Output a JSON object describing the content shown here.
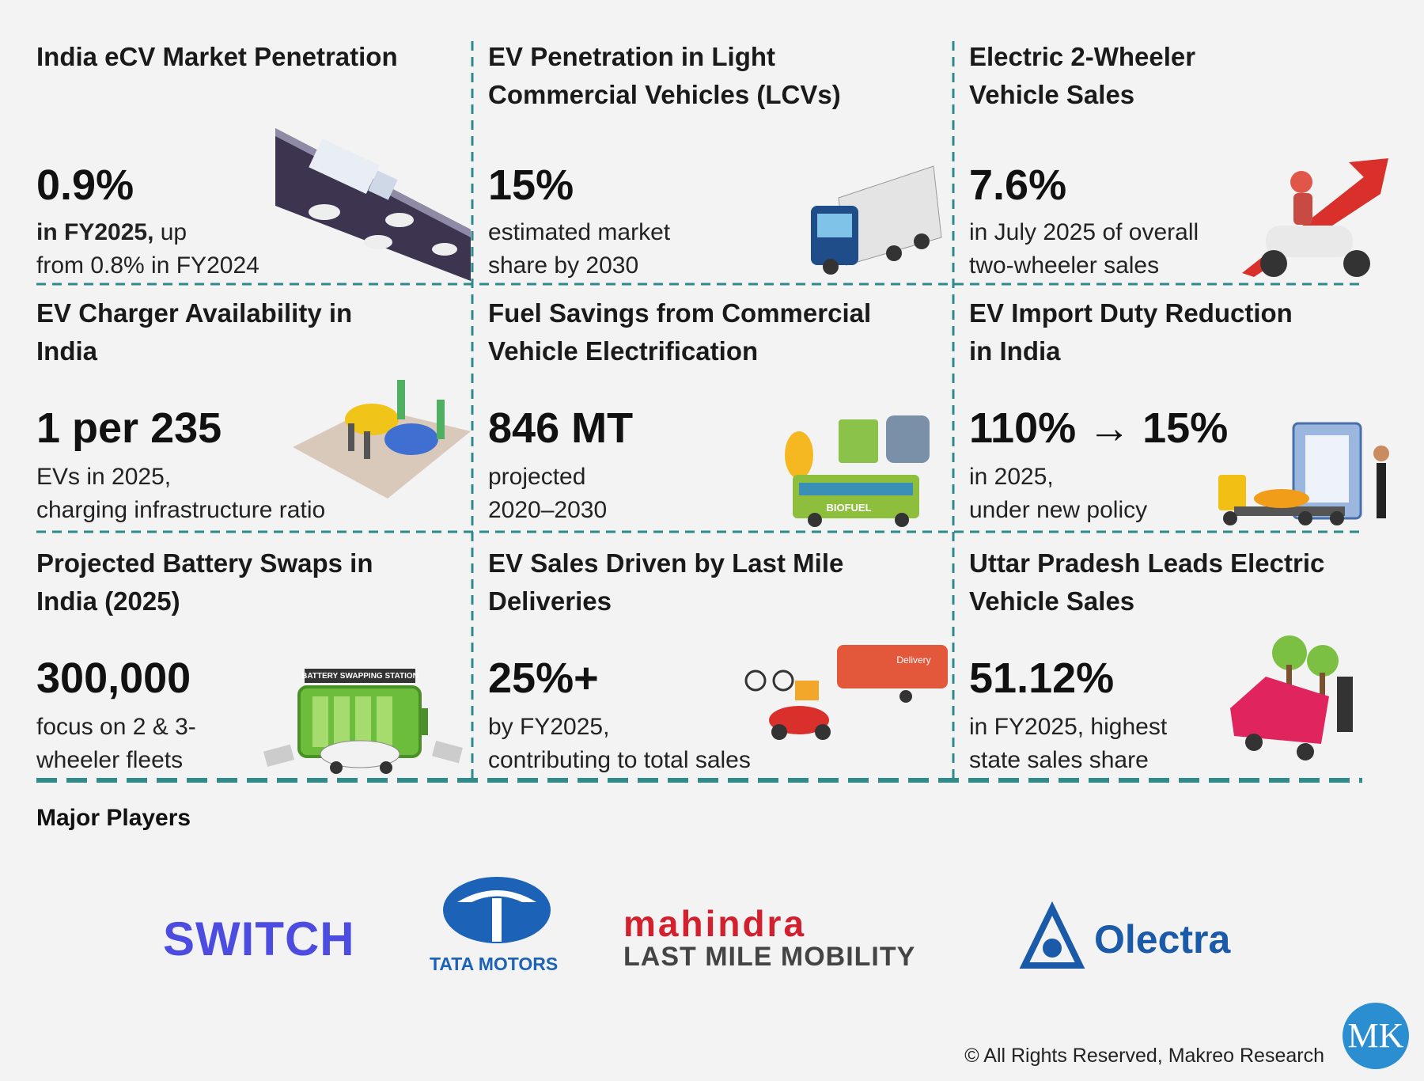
{
  "cards": [
    {
      "title": [
        "India eCV Market Penetration"
      ],
      "stat": "0.9%",
      "emphasis": "in FY2025,",
      "lines": [
        "up",
        "from 0.8% in FY2024"
      ]
    },
    {
      "title": [
        "EV Penetration in Light",
        "Commercial Vehicles (LCVs)"
      ],
      "stat": "15%",
      "lines": [
        "estimated market",
        "share by 2030"
      ]
    },
    {
      "title": [
        "Electric 2-Wheeler",
        "Vehicle Sales"
      ],
      "stat": "7.6%",
      "lines": [
        "in July 2025 of overall",
        "two-wheeler sales"
      ]
    },
    {
      "title": [
        "EV Charger Availability in",
        "India"
      ],
      "stat": "1 per 235",
      "lines": [
        "EVs in 2025,",
        "charging infrastructure ratio"
      ]
    },
    {
      "title": [
        "Fuel Savings from Commercial",
        "Vehicle Electrification"
      ],
      "stat": "846 MT",
      "lines": [
        "projected",
        "2020–2030"
      ],
      "illustration_text": "BIOFUEL"
    },
    {
      "title": [
        "EV Import Duty Reduction",
        "in India"
      ],
      "stat": "110% → 15%",
      "lines": [
        "in 2025,",
        "under new policy"
      ]
    },
    {
      "title": [
        "Projected Battery Swaps in",
        "India (2025)"
      ],
      "stat": "300,000",
      "lines": [
        "focus on 2 & 3-",
        "wheeler fleets"
      ],
      "illustration_text": "BATTERY SWAPPING STATION"
    },
    {
      "title": [
        "EV Sales Driven by Last Mile",
        "Deliveries"
      ],
      "stat": "25%+",
      "lines": [
        "by FY2025,",
        "contributing to total sales"
      ],
      "illustration_text": "Delivery"
    },
    {
      "title": [
        "Uttar Pradesh Leads Electric",
        "Vehicle Sales"
      ],
      "stat": "51.12%",
      "lines": [
        "in FY2025, highest",
        "state sales share"
      ]
    }
  ],
  "players": {
    "title": "Major Players",
    "logos": [
      {
        "name": "SWITCH"
      },
      {
        "name": "TATA MOTORS"
      },
      {
        "name": "mahindra",
        "subtitle": "LAST MILE MOBILITY"
      },
      {
        "name": "Olectra"
      }
    ]
  },
  "footer": "© All Rights Reserved, Makreo Research",
  "badge": "MK"
}
